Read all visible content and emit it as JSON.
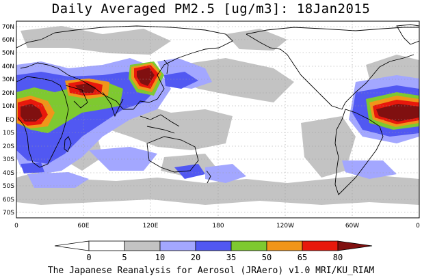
{
  "title": "Daily Averaged PM2.5 [ug/m3]: 18Jan2015",
  "map": {
    "lat_labels": [
      "70N",
      "60N",
      "50N",
      "40N",
      "30N",
      "20N",
      "10N",
      "EQ",
      "10S",
      "20S",
      "30S",
      "40S",
      "50S",
      "60S",
      "70S"
    ],
    "lon_labels": [
      "0",
      "60E",
      "120E",
      "180",
      "120W",
      "60W",
      "0"
    ],
    "ocean_color": "#ffffff",
    "land_outline_color": "#000000",
    "gridline_color": "#999999"
  },
  "colorbar": {
    "levels": [
      "0",
      "5",
      "10",
      "20",
      "35",
      "50",
      "65",
      "80"
    ],
    "colors": [
      "#ffffff",
      "#c3c3c3",
      "#a3a7ff",
      "#5158f2",
      "#7ec930",
      "#f0951a",
      "#e8180c",
      "#801010"
    ]
  },
  "footer": "The Japanese Reanalysis for Aerosol (JRAero) v1.0 MRI/KU_RIAM"
}
